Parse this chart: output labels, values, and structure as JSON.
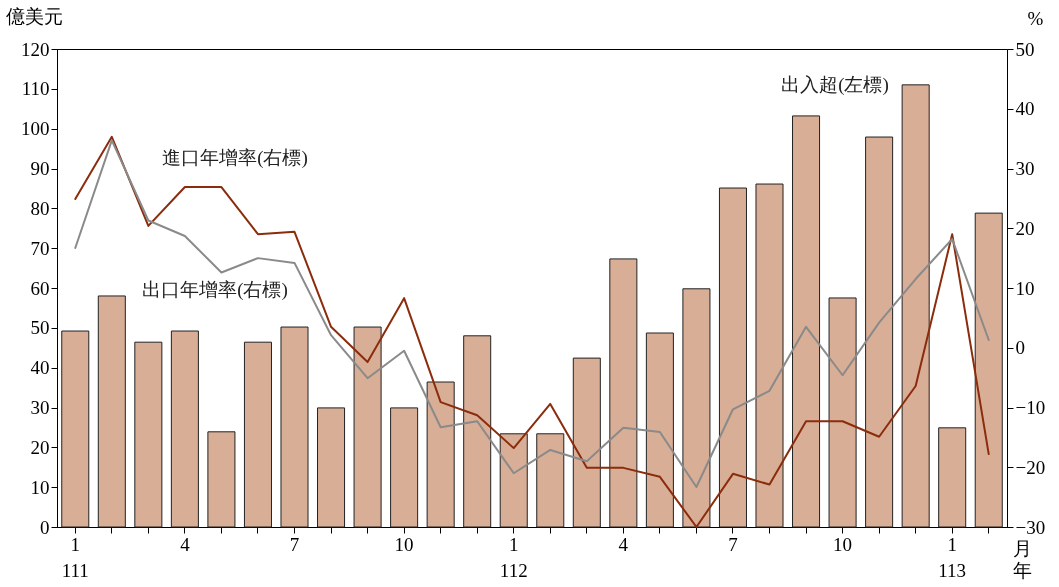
{
  "chart_data": {
    "type": "bar",
    "categories": [
      "1\n111",
      null,
      null,
      "4",
      null,
      null,
      "7",
      null,
      null,
      "10",
      null,
      null,
      "1\n112",
      null,
      null,
      "4",
      null,
      null,
      "7",
      null,
      null,
      "10",
      null,
      null,
      "1\n113",
      null
    ],
    "series": [
      {
        "name": "出入超(左標)",
        "color": "#d9ae96",
        "values": [
          49.2,
          58,
          46.4,
          49.2,
          23.9,
          46.4,
          50.2,
          29.9,
          50.2,
          29.9,
          36.4,
          48,
          23.4,
          23.4,
          42.4,
          67.3,
          48.7,
          59.8,
          85.1,
          86.1,
          103.2,
          57.5,
          97.9,
          111,
          24.9,
          78.8
        ]
      },
      {
        "type": "line",
        "axis": "y2",
        "name": "進口年增率(右標)",
        "color": "#8b2c0c",
        "values": [
          24.9,
          35.3,
          20.4,
          26.9,
          26.9,
          19.0,
          19.4,
          3.5,
          -2.4,
          8.3,
          -9.1,
          -11.3,
          -16.8,
          -9.4,
          -20.1,
          -20.1,
          -21.6,
          -30,
          -21.1,
          -22.9,
          -12.3,
          -12.3,
          -14.9,
          -6.4,
          19,
          -17.8
        ]
      },
      {
        "type": "line",
        "axis": "y2",
        "name": "出口年增率(右標)",
        "color": "#8a8a8a",
        "values": [
          16.7,
          34.7,
          21.3,
          18.7,
          12.6,
          15,
          14.2,
          2.1,
          -5.1,
          -0.5,
          -13.3,
          -12.3,
          -21,
          -17.1,
          -19,
          -13.4,
          -14.1,
          -23.3,
          -10.3,
          -7.2,
          3.5,
          -4.6,
          4.2,
          11.5,
          18.2,
          1.3
        ]
      }
    ],
    "xlabel": "月年",
    "ylabel": "億美元",
    "y2label": "%",
    "ylim": [
      0,
      120
    ],
    "yticks": [
      0,
      10,
      20,
      30,
      40,
      50,
      60,
      70,
      80,
      90,
      100,
      110,
      120
    ],
    "y2lim": [
      -30,
      50
    ],
    "y2ticks": [
      -30,
      -20,
      -10,
      0,
      10,
      20,
      30,
      40,
      50
    ],
    "legend": false
  }
}
